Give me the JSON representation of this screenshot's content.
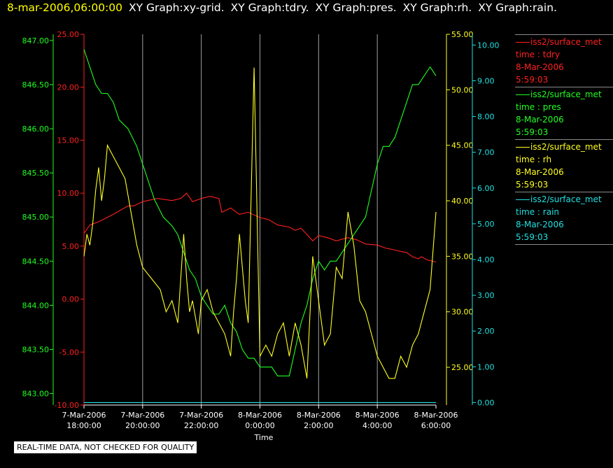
{
  "header": {
    "timestamp": "8-mar-2006,06:00:00",
    "graphs": [
      "XY Graph:xy-grid.",
      "XY Graph:tdry.",
      "XY Graph:pres.",
      "XY Graph:rh.",
      "XY Graph:rain."
    ]
  },
  "legend": [
    {
      "source": "iss2/surface_met",
      "var": "time : tdry",
      "date": "8-Mar-2006",
      "time": "5:59:03",
      "color": "#ff2020"
    },
    {
      "source": "iss2/surface_met",
      "var": "time : pres",
      "date": "8-Mar-2006",
      "time": "5:59:03",
      "color": "#20ff20"
    },
    {
      "source": "iss2/surface_met",
      "var": "time : rh",
      "date": "8-Mar-2006",
      "time": "5:59:03",
      "color": "#ffff20"
    },
    {
      "source": "iss2/surface_met",
      "var": "time : rain",
      "date": "8-Mar-2006",
      "time": "5:59:03",
      "color": "#20e0e0"
    }
  ],
  "note": "REAL-TIME DATA, NOT CHECKED FOR QUALITY",
  "chart_data": {
    "type": "line",
    "xlabel": "Time",
    "x_ticks": [
      [
        "7-Mar-2006",
        "18:00:00"
      ],
      [
        "7-Mar-2006",
        "20:00:00"
      ],
      [
        "7-Mar-2006",
        "22:00:00"
      ],
      [
        "8-Mar-2006",
        "0:00:00"
      ],
      [
        "8-Mar-2006",
        "2:00:00"
      ],
      [
        "8-Mar-2006",
        "4:00:00"
      ],
      [
        "8-Mar-2006",
        "6:00:00"
      ]
    ],
    "xlim_hours": [
      18,
      30
    ],
    "grid": true,
    "axes": {
      "pres": {
        "color": "#20ff20",
        "ylim": [
          842.87,
          847.07
        ],
        "ticks": [
          "843.00",
          "843.50",
          "844.00",
          "844.50",
          "845.00",
          "845.50",
          "846.00",
          "846.50",
          "847.00"
        ]
      },
      "tdry": {
        "color": "#ff2020",
        "ylim": [
          -10,
          25
        ],
        "ticks": [
          "-10.00",
          "-5.00",
          "0.00",
          "5.00",
          "10.00",
          "15.00",
          "20.00",
          "25.00"
        ]
      },
      "rh": {
        "color": "#ffff20",
        "ylim": [
          21.6,
          55
        ],
        "ticks": [
          "25.00",
          "30.00",
          "35.00",
          "40.00",
          "45.00",
          "50.00",
          "55.00"
        ]
      },
      "rain": {
        "color": "#20e0e0",
        "ylim": [
          -0.07,
          10.3
        ],
        "ticks": [
          "0.00",
          "1.00",
          "2.00",
          "3.00",
          "4.00",
          "5.00",
          "6.00",
          "7.00",
          "8.00",
          "9.00",
          "10.00"
        ]
      }
    },
    "series": [
      {
        "name": "time : tdry",
        "axis": "tdry",
        "x": [
          18,
          18.2,
          18.5,
          19,
          19.5,
          19.7,
          20,
          20.5,
          21,
          21.3,
          21.5,
          21.7,
          22,
          22.3,
          22.6,
          22.7,
          23,
          23.3,
          23.6,
          24,
          24.3,
          24.6,
          25,
          25.2,
          25.4,
          25.6,
          25.8,
          26,
          26.3,
          26.6,
          27,
          27.3,
          27.6,
          28,
          28.3,
          28.5,
          28.8,
          29,
          29.2,
          29.4,
          29.5,
          29.7,
          30
        ],
        "y": [
          6.2,
          7.0,
          7.3,
          8.0,
          8.8,
          8.8,
          9.2,
          9.5,
          9.3,
          9.5,
          10.0,
          9.2,
          9.5,
          9.7,
          9.5,
          8.2,
          8.6,
          8.0,
          8.2,
          7.7,
          7.5,
          7.0,
          6.8,
          6.5,
          6.7,
          6.1,
          5.5,
          6.0,
          5.8,
          5.5,
          5.8,
          5.6,
          5.2,
          5.1,
          4.8,
          4.7,
          4.5,
          4.4,
          4.0,
          3.8,
          4.0,
          3.7,
          3.5
        ]
      },
      {
        "name": "time : pres",
        "axis": "pres",
        "x": [
          18,
          18.2,
          18.4,
          18.6,
          18.8,
          19,
          19.2,
          19.5,
          19.8,
          20.1,
          20.4,
          20.7,
          21.0,
          21.2,
          21.5,
          21.6,
          21.8,
          22.0,
          22.2,
          22.4,
          22.6,
          22.8,
          23.0,
          23.2,
          23.4,
          23.6,
          23.8,
          24.0,
          24.2,
          24.4,
          24.6,
          24.8,
          25.0,
          25.2,
          25.4,
          25.6,
          25.8,
          26.0,
          26.2,
          26.4,
          26.6,
          26.8,
          27.0,
          27.2,
          27.4,
          27.6,
          27.8,
          28.0,
          28.2,
          28.4,
          28.6,
          28.8,
          29.0,
          29.2,
          29.4,
          29.6,
          29.8,
          30
        ],
        "y": [
          846.9,
          846.7,
          846.5,
          846.4,
          846.4,
          846.3,
          846.1,
          846.0,
          845.8,
          845.5,
          845.2,
          845.0,
          844.9,
          844.8,
          844.5,
          844.4,
          844.3,
          844.1,
          844.0,
          843.9,
          843.9,
          844.0,
          843.8,
          843.7,
          843.5,
          843.4,
          843.4,
          843.3,
          843.3,
          843.3,
          843.2,
          843.2,
          843.2,
          843.5,
          843.8,
          844.0,
          844.3,
          844.5,
          844.4,
          844.5,
          844.5,
          844.6,
          844.7,
          844.8,
          844.9,
          845.0,
          845.3,
          845.6,
          845.8,
          845.8,
          845.9,
          846.1,
          846.3,
          846.5,
          846.5,
          846.6,
          846.7,
          846.6
        ]
      },
      {
        "name": "time : rh",
        "axis": "rh",
        "x": [
          18,
          18.1,
          18.2,
          18.3,
          18.4,
          18.5,
          18.6,
          18.7,
          18.8,
          19.0,
          19.2,
          19.4,
          19.6,
          19.8,
          20.0,
          20.3,
          20.6,
          20.8,
          21.0,
          21.2,
          21.3,
          21.4,
          21.5,
          21.6,
          21.7,
          21.9,
          22.0,
          22.2,
          22.4,
          22.6,
          22.8,
          23.0,
          23.1,
          23.2,
          23.3,
          23.4,
          23.5,
          23.6,
          23.8,
          24.0,
          24.2,
          24.4,
          24.6,
          24.8,
          25.0,
          25.2,
          25.4,
          25.6,
          25.8,
          26.0,
          26.2,
          26.4,
          26.6,
          26.8,
          27.0,
          27.2,
          27.4,
          27.6,
          27.8,
          28.0,
          28.2,
          28.4,
          28.6,
          28.8,
          29.0,
          29.2,
          29.4,
          29.6,
          29.8,
          30
        ],
        "y": [
          35,
          37,
          36,
          38,
          41,
          43,
          40,
          42,
          45,
          44,
          43,
          42,
          39,
          36,
          34,
          33,
          32,
          30,
          31,
          29,
          33,
          37,
          33,
          30,
          31,
          28,
          31,
          32,
          30,
          29,
          28,
          26,
          30,
          33,
          37,
          34,
          31,
          29,
          52,
          26,
          27,
          26,
          28,
          29,
          26,
          29,
          27,
          24,
          35,
          31,
          27,
          28,
          34,
          33,
          39,
          36,
          31,
          30,
          28,
          26,
          25,
          24,
          24,
          26,
          25,
          27,
          28,
          30,
          32,
          39
        ]
      },
      {
        "name": "time : rain",
        "axis": "rain",
        "x": [
          18,
          30
        ],
        "y": [
          0.0,
          0.0
        ]
      }
    ]
  }
}
